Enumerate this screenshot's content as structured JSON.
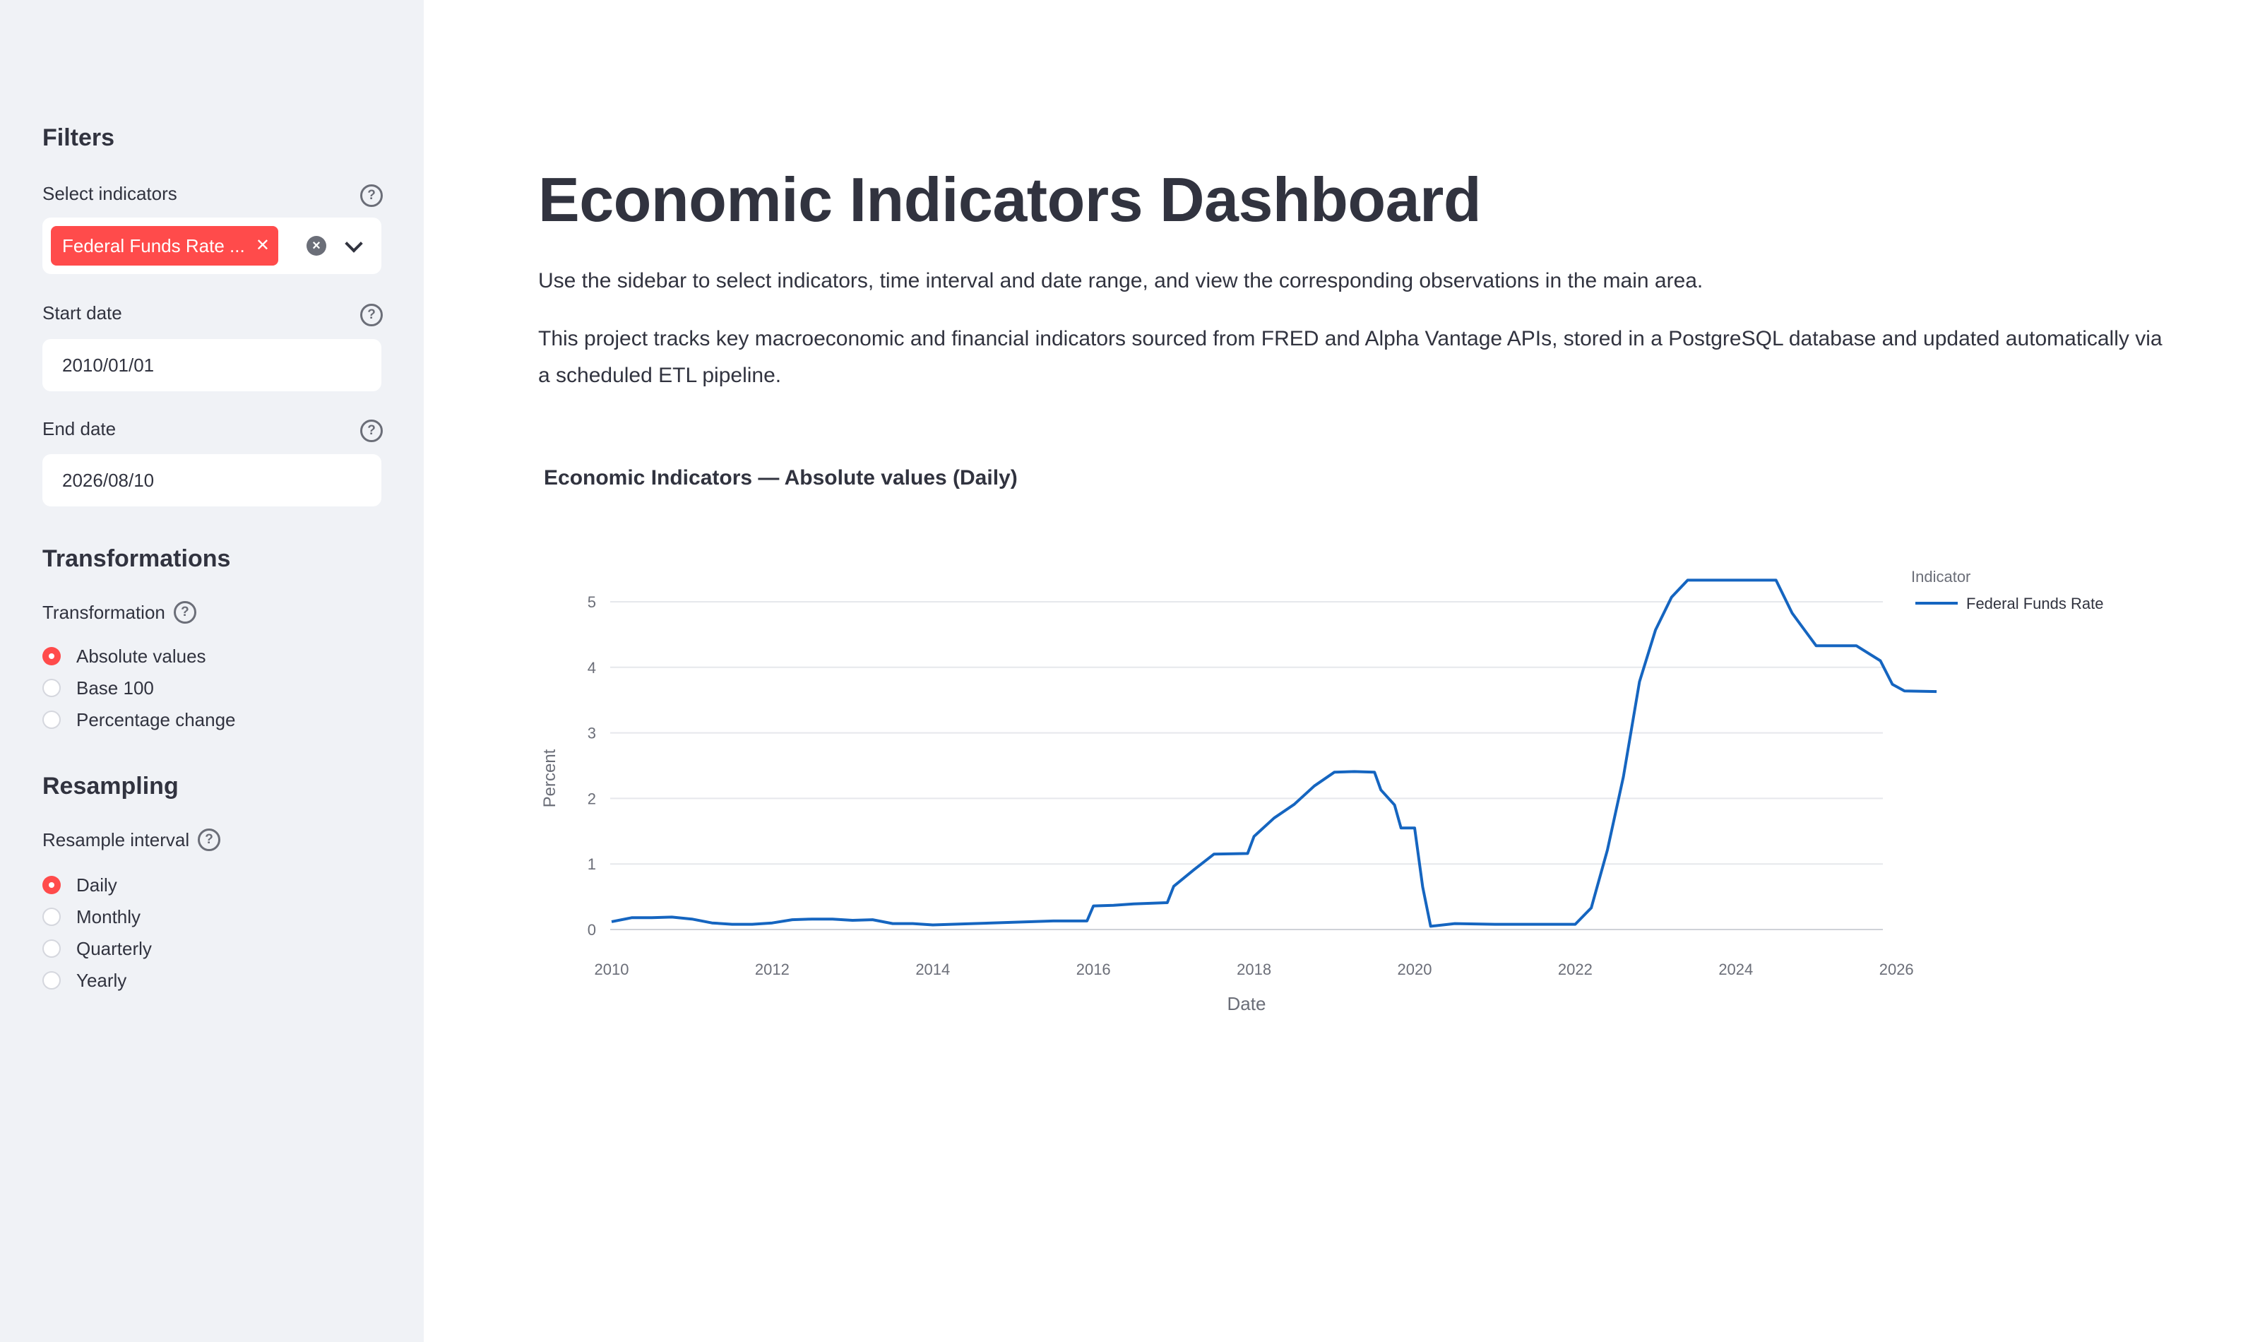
{
  "sidebar": {
    "filters_heading": "Filters",
    "select_indicators_label": "Select indicators",
    "selected_chip": "Federal Funds Rate ...",
    "start_date_label": "Start date",
    "start_date_value": "2010/01/01",
    "end_date_label": "End date",
    "end_date_value": "2026/08/10",
    "transformations_heading": "Transformations",
    "transformation_label": "Transformation",
    "transformation_options": [
      "Absolute values",
      "Base 100",
      "Percentage change"
    ],
    "transformation_selected": 0,
    "resampling_heading": "Resampling",
    "resample_label": "Resample interval",
    "resample_options": [
      "Daily",
      "Monthly",
      "Quarterly",
      "Yearly"
    ],
    "resample_selected": 0
  },
  "main": {
    "title": "Economic Indicators Dashboard",
    "intro": "Use the sidebar to select indicators, time interval and date range, and view the corresponding observations in the main area.",
    "description": "This project tracks key macroeconomic and financial indicators sourced from FRED and Alpha Vantage APIs, stored in a PostgreSQL database and updated automatically via a scheduled ETL pipeline."
  },
  "colors": {
    "accent": "#ff4b4b",
    "series": "#1565c0",
    "sidebar_bg": "#f0f2f6",
    "text": "#31333f"
  },
  "chart_data": {
    "type": "line",
    "title": "Economic Indicators — Absolute values (Daily)",
    "xlabel": "Date",
    "ylabel": "Percent",
    "xlim": [
      2010.0,
      2026.5
    ],
    "ylim": [
      0,
      5.5
    ],
    "x_ticks": [
      "2010",
      "2012",
      "2014",
      "2016",
      "2018",
      "2020",
      "2022",
      "2024",
      "2026"
    ],
    "y_ticks": [
      "0",
      "1",
      "2",
      "3",
      "4",
      "5"
    ],
    "grid": true,
    "legend_title": "Indicator",
    "legend_position": "top-right",
    "series": [
      {
        "name": "Federal Funds Rate",
        "x": [
          2010.0,
          2010.25,
          2010.5,
          2010.75,
          2011.0,
          2011.25,
          2011.5,
          2011.75,
          2012.0,
          2012.25,
          2012.5,
          2012.75,
          2013.0,
          2013.25,
          2013.5,
          2013.75,
          2014.0,
          2014.5,
          2015.0,
          2015.5,
          2015.92,
          2016.0,
          2016.25,
          2016.5,
          2016.92,
          2017.0,
          2017.25,
          2017.5,
          2017.92,
          2018.0,
          2018.25,
          2018.5,
          2018.75,
          2019.0,
          2019.25,
          2019.5,
          2019.58,
          2019.75,
          2019.83,
          2020.0,
          2020.1,
          2020.2,
          2020.5,
          2021.0,
          2021.5,
          2022.0,
          2022.2,
          2022.4,
          2022.6,
          2022.8,
          2023.0,
          2023.2,
          2023.4,
          2023.55,
          2023.8,
          2024.0,
          2024.5,
          2024.7,
          2024.85,
          2025.0,
          2025.5,
          2025.8,
          2025.95,
          2026.1,
          2026.5
        ],
        "values": [
          0.12,
          0.18,
          0.18,
          0.19,
          0.16,
          0.1,
          0.08,
          0.08,
          0.1,
          0.15,
          0.16,
          0.16,
          0.14,
          0.15,
          0.09,
          0.09,
          0.07,
          0.09,
          0.11,
          0.13,
          0.13,
          0.36,
          0.37,
          0.39,
          0.41,
          0.66,
          0.91,
          1.15,
          1.16,
          1.42,
          1.7,
          1.91,
          2.19,
          2.4,
          2.41,
          2.4,
          2.13,
          1.9,
          1.55,
          1.55,
          0.65,
          0.05,
          0.09,
          0.08,
          0.08,
          0.08,
          0.33,
          1.21,
          2.33,
          3.78,
          4.57,
          5.07,
          5.33,
          5.33,
          5.33,
          5.33,
          5.33,
          4.83,
          4.58,
          4.33,
          4.33,
          4.1,
          3.74,
          3.64,
          3.63
        ]
      }
    ]
  }
}
